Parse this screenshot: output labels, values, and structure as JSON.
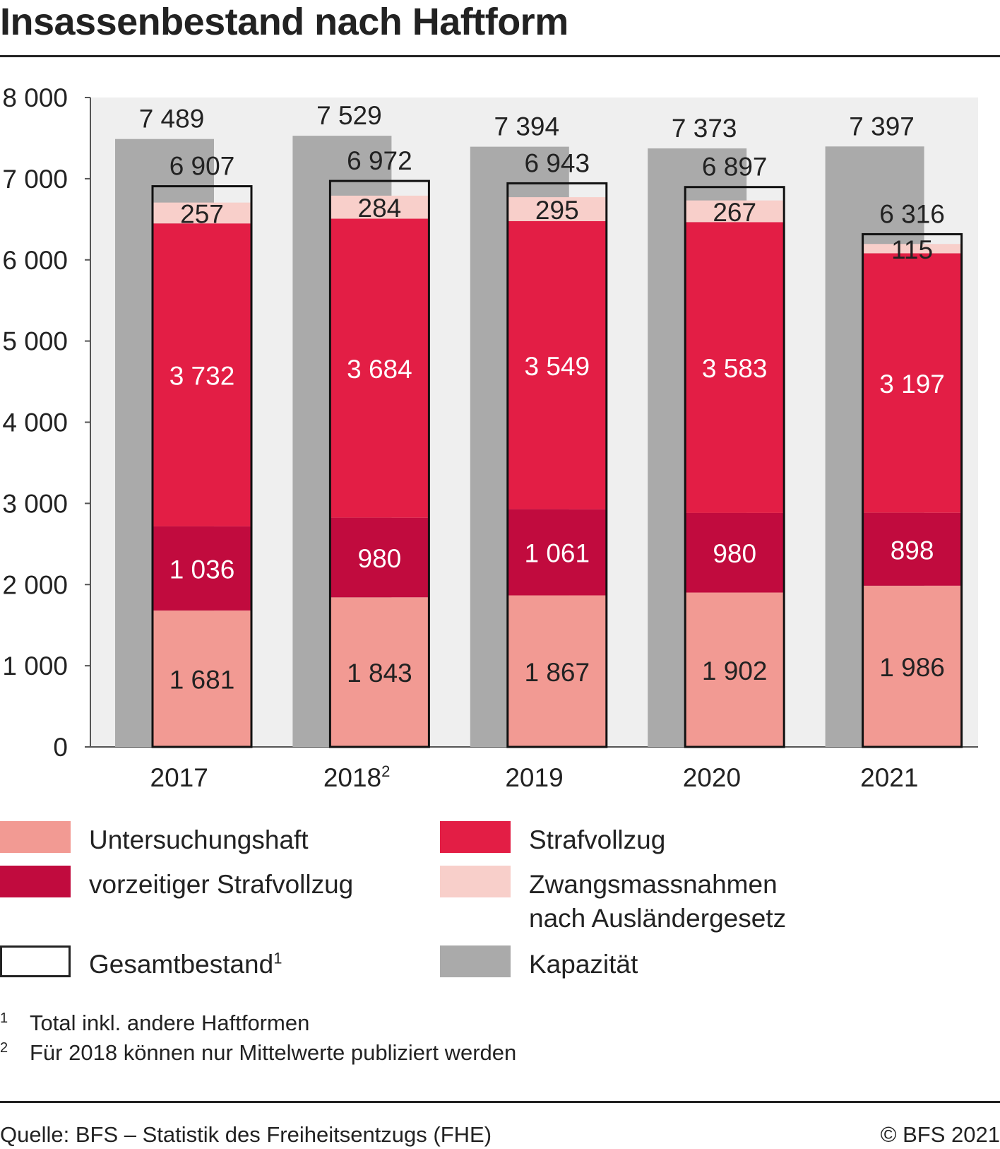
{
  "title": "Insassenbestand nach Haftform",
  "chart_data": {
    "type": "bar",
    "stacked": true,
    "title": "Insassenbestand nach Haftform",
    "categories": [
      "2017",
      "2018",
      "2019",
      "2020",
      "2021"
    ],
    "category_superscripts": [
      "",
      "2",
      "",
      "",
      ""
    ],
    "ylim": [
      0,
      8000
    ],
    "yticks": [
      0,
      1000,
      2000,
      3000,
      4000,
      5000,
      6000,
      7000,
      8000
    ],
    "ytick_labels": [
      "0",
      "1 000",
      "2 000",
      "3 000",
      "4 000",
      "5 000",
      "6 000",
      "7 000",
      "8 000"
    ],
    "grid": false,
    "background": "#efefef",
    "series": [
      {
        "name": "Untersuchungshaft",
        "color": "#f29a93",
        "values": [
          1681,
          1843,
          1867,
          1902,
          1986
        ],
        "labels": [
          "1 681",
          "1 843",
          "1 867",
          "1 902",
          "1 986"
        ]
      },
      {
        "name": "vorzeitiger Strafvollzug",
        "color": "#c10b3e",
        "values": [
          1036,
          980,
          1061,
          980,
          898
        ],
        "labels": [
          "1 036",
          "980",
          "1 061",
          "980",
          "898"
        ]
      },
      {
        "name": "Strafvollzug",
        "color": "#e31e45",
        "values": [
          3732,
          3684,
          3549,
          3583,
          3197
        ],
        "labels": [
          "3 732",
          "3 684",
          "3 549",
          "3 583",
          "3 197"
        ]
      },
      {
        "name": "Zwangsmassnahmen nach Ausländergesetz",
        "color": "#f8cfca",
        "values": [
          257,
          284,
          295,
          267,
          115
        ],
        "labels": [
          "257",
          "284",
          "295",
          "267",
          "115"
        ]
      }
    ],
    "total": {
      "name": "Gesamtbestand",
      "values": [
        6907,
        6972,
        6943,
        6897,
        6316
      ],
      "labels": [
        "6 907",
        "6 972",
        "6 943",
        "6 897",
        "6 316"
      ]
    },
    "capacity": {
      "name": "Kapazität",
      "color": "#aaaaaa",
      "values": [
        7489,
        7529,
        7394,
        7373,
        7397
      ],
      "labels": [
        "7 489",
        "7 529",
        "7 394",
        "7 373",
        "7 397"
      ]
    }
  },
  "legend": {
    "untersuchungshaft": "Untersuchungshaft",
    "strafvollzug": "Strafvollzug",
    "vorzeitiger": "vorzeitiger Strafvollzug",
    "zwang_line1": "Zwangsmassnahmen",
    "zwang_line2": "nach Ausländergesetz",
    "gesamt": "Gesamtbestand",
    "gesamt_sup": "1",
    "kapazitaet": "Kapazität"
  },
  "footnotes": [
    {
      "mark": "1",
      "text": "Total inkl. andere Haftformen"
    },
    {
      "mark": "2",
      "text": "Für 2018 können nur Mittelwerte publiziert werden"
    }
  ],
  "source": "Quelle: BFS – Statistik des Freiheitsentzugs (FHE)",
  "copyright": "© BFS 2021"
}
